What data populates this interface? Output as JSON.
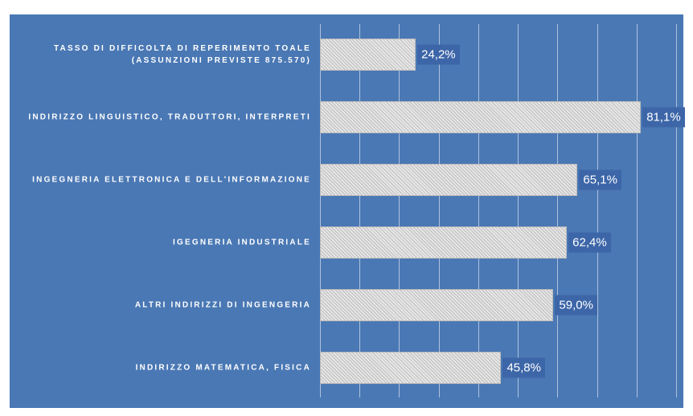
{
  "chart_data": {
    "type": "hbar",
    "categories": [
      "TASSO DI DIFFICOLTA DI REPERIMENTO TOALE (ASSUNZIONI PREVISTE 875.570)",
      "INDIRIZZO LINGUISTICO, TRADUTTORI, INTERPRETI",
      "INGEGNERIA ELETTRONICA E DELL'INFORMAZIONE",
      "IGEGNERIA INDUSTRIALE",
      "ALTRI INDIRIZZI DI INGENGERIA",
      "INDIRIZZO MATEMATICA, FISICA"
    ],
    "values": [
      24.2,
      81.1,
      65.1,
      62.4,
      59.0,
      45.8
    ],
    "value_labels": [
      "24,2%",
      "81,1%",
      "65,1%",
      "62,4%",
      "59,0%",
      "45,8%"
    ],
    "xlim": [
      0,
      90
    ],
    "xticks": [
      0,
      10,
      20,
      30,
      40,
      50,
      60,
      70,
      80,
      90
    ],
    "grid": true,
    "color": "#e6e6e6",
    "background": "#4a78b4"
  }
}
